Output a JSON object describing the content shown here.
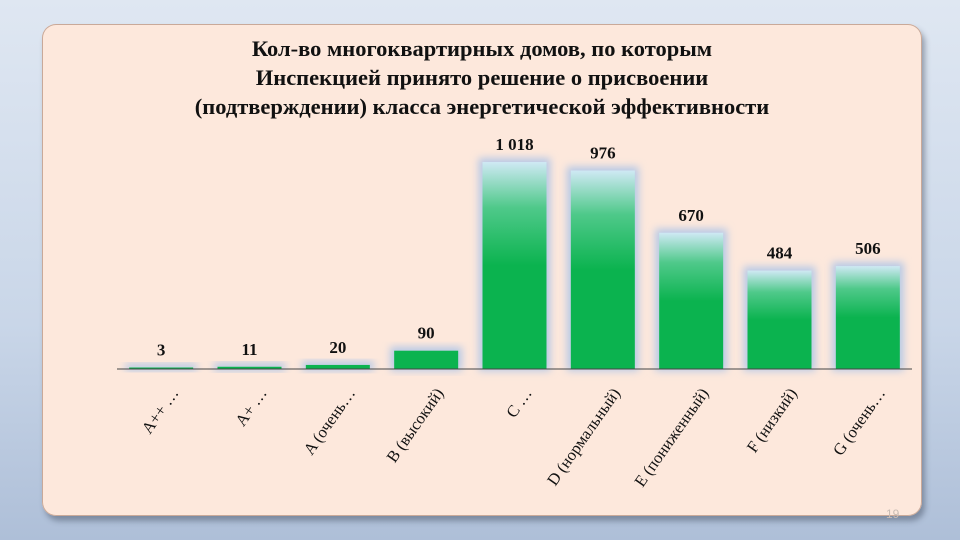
{
  "chart_data": {
    "type": "bar",
    "title_lines": [
      "Кол-во многоквартирных домов, по которым",
      "Инспекцией принято решение о присвоении",
      "(подтверждении) класса энергетической эффективности"
    ],
    "categories": [
      "A++ …",
      "A+ …",
      "A (очень…",
      "B (высокий)",
      "C …",
      "D (нормальный)",
      "E (пониженный)",
      "F (низкий)",
      "G (очень…"
    ],
    "values": [
      3,
      11,
      20,
      90,
      1018,
      976,
      670,
      484,
      506
    ],
    "value_labels": [
      "3",
      "11",
      "20",
      "90",
      "1 018",
      "976",
      "670",
      "484",
      "506"
    ],
    "ylim": [
      0,
      1018
    ],
    "grid": false,
    "legend": "none",
    "colors": {
      "bar": "#0bb34f",
      "bar_glow": "#b7c9e6",
      "axis": "#444444"
    }
  },
  "page_number": "19"
}
